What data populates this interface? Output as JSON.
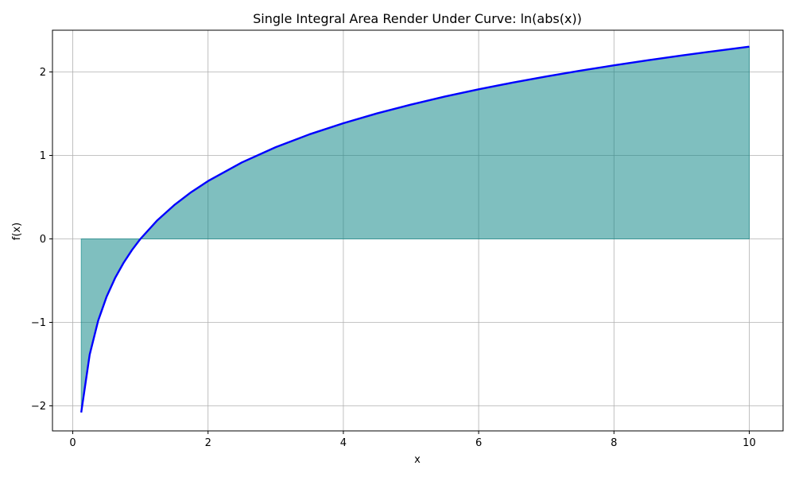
{
  "chart_data": {
    "type": "area",
    "title": "Single Integral Area Render Under Curve: ln(abs(x))",
    "xlabel": "x",
    "ylabel": "f(x)",
    "xlim": [
      -0.3,
      10.5
    ],
    "ylim": [
      -2.3,
      2.5
    ],
    "xticks": [
      0,
      2,
      4,
      6,
      8,
      10
    ],
    "xtick_labels": [
      "0",
      "2",
      "4",
      "6",
      "8",
      "10"
    ],
    "yticks": [
      -2,
      -1,
      0,
      1,
      2
    ],
    "ytick_labels": [
      "−2",
      "−1",
      "0",
      "1",
      "2"
    ],
    "grid": true,
    "series": [
      {
        "function": "ln(abs(x))",
        "x": [
          0.125,
          0.25,
          0.375,
          0.5,
          0.625,
          0.75,
          0.875,
          1.0,
          1.25,
          1.5,
          1.75,
          2.0,
          2.5,
          3.0,
          3.5,
          4.0,
          4.5,
          5.0,
          5.5,
          6.0,
          6.5,
          7.0,
          7.5,
          8.0,
          8.5,
          9.0,
          9.5,
          10.0
        ],
        "y": [
          -2.079,
          -1.386,
          -0.981,
          -0.693,
          -0.47,
          -0.288,
          -0.134,
          0.0,
          0.223,
          0.405,
          0.56,
          0.693,
          0.916,
          1.099,
          1.253,
          1.386,
          1.504,
          1.609,
          1.705,
          1.792,
          1.872,
          1.946,
          2.015,
          2.079,
          2.14,
          2.197,
          2.251,
          2.303
        ]
      }
    ],
    "fill_range": [
      0.125,
      10.0
    ],
    "colors": {
      "line": "#0000ff",
      "fill": "#008080",
      "grid": "#b0b0b0",
      "axes": "#000000"
    }
  }
}
